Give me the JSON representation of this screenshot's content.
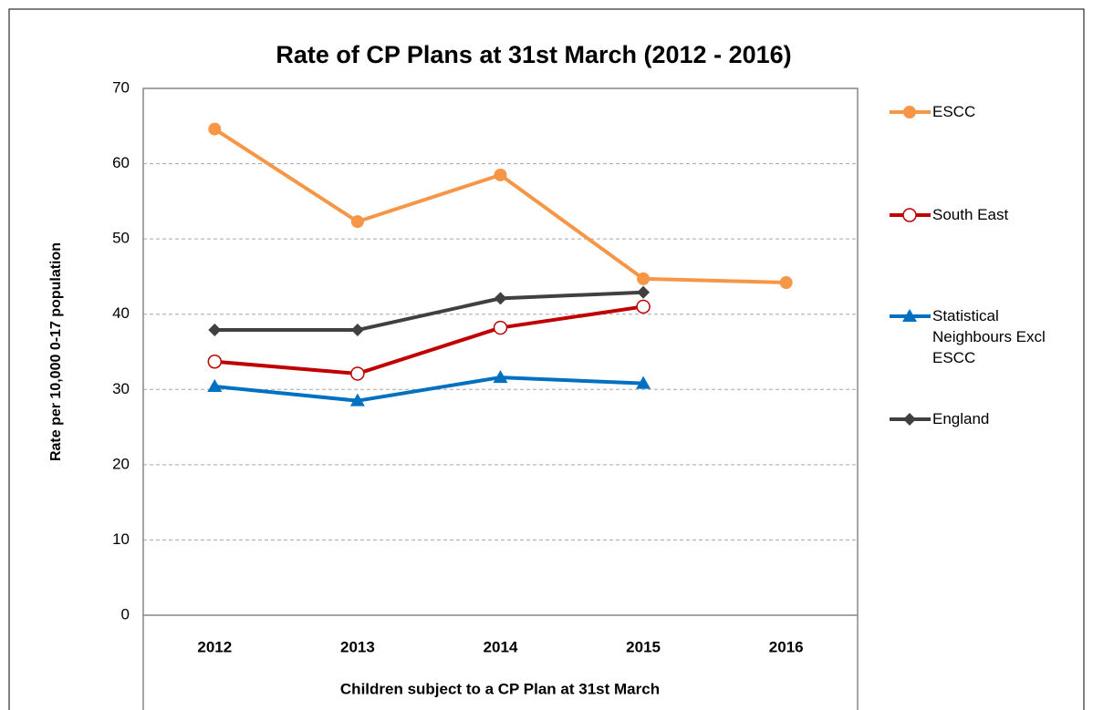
{
  "chart_data": {
    "type": "line",
    "title": "Rate of CP Plans at 31st March (2012 - 2016)",
    "x_label": "Children subject to a CP Plan at 31st March",
    "y_label": "Rate per 10,000 0-17 population",
    "categories": [
      "2012",
      "2013",
      "2014",
      "2015",
      "2016"
    ],
    "series": [
      {
        "name": "ESCC",
        "color": "#f79646",
        "marker": "circle",
        "values": [
          64.6,
          52.3,
          58.5,
          44.7,
          44.2
        ]
      },
      {
        "name": "South East",
        "color": "#c00000",
        "marker": "open-circle",
        "values": [
          33.7,
          32.1,
          38.2,
          41.0,
          null
        ]
      },
      {
        "name": "Statistical Neighbours Excl ESCC",
        "color": "#0070c0",
        "marker": "triangle",
        "values": [
          30.4,
          28.5,
          31.6,
          30.8,
          null
        ]
      },
      {
        "name": "England",
        "color": "#404040",
        "marker": "diamond",
        "values": [
          37.9,
          37.9,
          42.1,
          42.9,
          null
        ]
      }
    ],
    "ylim": [
      0,
      70
    ],
    "yticks": [
      0,
      10,
      20,
      30,
      40,
      50,
      60,
      70
    ],
    "grid": true,
    "legend": "right"
  }
}
